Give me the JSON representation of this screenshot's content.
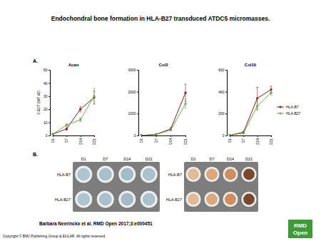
{
  "title": "Endochondral bone formation in HLA-B27 transduced ATDC5 micromasses.",
  "panels": [
    "A.",
    "B."
  ],
  "chart_data": [
    {
      "type": "line",
      "title": "Acan",
      "y_label": "2-ΔCT (WT d1)",
      "categories": [
        "D1",
        "D7",
        "D14",
        "D21"
      ],
      "ylim": [
        0,
        50
      ],
      "yticks": [
        0,
        10,
        20,
        30,
        40,
        50
      ],
      "series": [
        {
          "name": "HLA-B7",
          "color": "#8b1a1a",
          "marker": "circle",
          "values": [
            1,
            5,
            20,
            29
          ],
          "errors": [
            0.3,
            1,
            2,
            5
          ]
        },
        {
          "name": "HLA-B27",
          "color": "#6aa84f",
          "marker": "circle",
          "values": [
            1,
            8,
            12,
            30
          ],
          "errors": [
            0.3,
            1,
            1.5,
            6
          ]
        }
      ]
    },
    {
      "type": "line",
      "title": "Col2",
      "categories": [
        "D1",
        "D7",
        "D14",
        "D21"
      ],
      "ylim": [
        0,
        3000
      ],
      "yticks": [
        0,
        1000,
        2000,
        3000
      ],
      "series": [
        {
          "name": "HLA-B7",
          "color": "#8b1a1a",
          "marker": "circle",
          "values": [
            5,
            50,
            300,
            1950
          ],
          "errors": [
            2,
            10,
            60,
            400
          ]
        },
        {
          "name": "HLA-B27",
          "color": "#6aa84f",
          "marker": "circle",
          "values": [
            5,
            40,
            250,
            1450
          ],
          "errors": [
            2,
            10,
            50,
            200
          ]
        }
      ]
    },
    {
      "type": "line",
      "title": "Col10",
      "legend": "right",
      "categories": [
        "D1",
        "D7",
        "D14",
        "D21"
      ],
      "ylim": [
        0,
        600
      ],
      "yticks": [
        0,
        200,
        400,
        600
      ],
      "series": [
        {
          "name": "HLA-B7",
          "color": "#8b1a1a",
          "marker": "circle",
          "values": [
            2,
            30,
            340,
            420
          ],
          "errors": [
            1,
            5,
            100,
            30
          ]
        },
        {
          "name": "HLA-B27",
          "color": "#6aa84f",
          "marker": "circle",
          "values": [
            2,
            20,
            270,
            390
          ],
          "errors": [
            1,
            5,
            40,
            20
          ]
        }
      ]
    }
  ],
  "plates": [
    {
      "columns": [
        "D1",
        "D7",
        "D14",
        "D21"
      ],
      "rows": [
        "HLA-B7",
        "HLA-B27"
      ],
      "colors": [
        "#a6bfca",
        "#9fbac6",
        "#9ab5c2",
        "#a3bcc8"
      ]
    },
    {
      "columns": [
        "D1",
        "D7",
        "D14",
        "D21"
      ],
      "rows": [
        "HLA-B7",
        "HLA-B27"
      ],
      "colors": [
        "#e0b48c",
        "#d99f6c",
        "#c9844c",
        "#6b3519"
      ]
    }
  ],
  "footer": "Barbara Neerinckx et al. RMD Open 2017;3:e000451",
  "copyright": "Copyright © BMJ Publishing Group & EULAR. All rights reserved.",
  "logo": [
    "RMD",
    "Open"
  ]
}
